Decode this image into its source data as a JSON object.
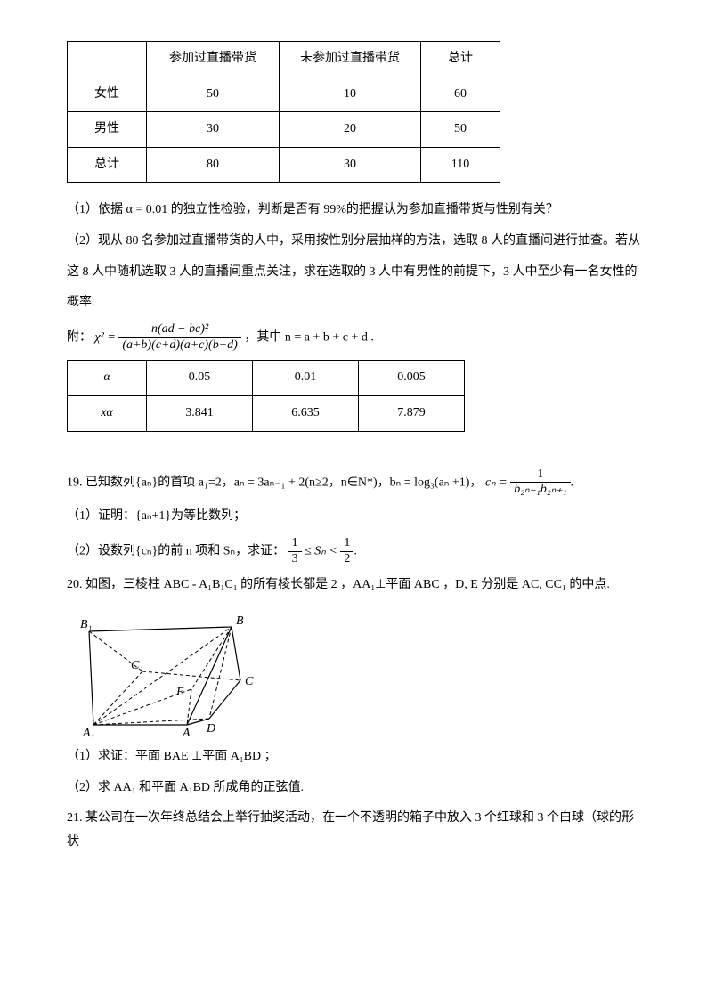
{
  "table1": {
    "headers": [
      "",
      "参加过直播带货",
      "未参加过直播带货",
      "总计"
    ],
    "rows": [
      [
        "女性",
        "50",
        "10",
        "60"
      ],
      [
        "男性",
        "30",
        "20",
        "50"
      ],
      [
        "总计",
        "80",
        "30",
        "110"
      ]
    ],
    "col_widths": [
      "60px",
      "120px",
      "130px",
      "60px"
    ]
  },
  "q_part1": "（1）依据 α = 0.01 的独立性检验，判断是否有 99%的把握认为参加直播带货与性别有关？",
  "q_part2a": "（2）现从 80 名参加过直播带货的人中，采用按性别分层抽样的方法，选取 8 人的直播间进行抽查。若从",
  "q_part2b": "这 8 人中随机选取 3 人的直播间重点关注，求在选取的 3 人中有男性的前提下，3 人中至少有一名女性的",
  "q_part2c": "概率.",
  "appendix": {
    "label": "附：",
    "formula_lhs": "χ² =",
    "formula_num": "n(ad − bc)²",
    "formula_den": "(a+b)(c+d)(a+c)(b+d)",
    "formula_tail": "，其中 n = a + b + c + d ."
  },
  "table2": {
    "rows": [
      [
        "α",
        "0.05",
        "0.01",
        "0.005"
      ],
      [
        "xα",
        "3.841",
        "6.635",
        "7.879"
      ]
    ],
    "col_widths": [
      "60px",
      "90px",
      "90px",
      "90px"
    ]
  },
  "q19": {
    "stem_a": "19. 已知数列{aₙ}的首项 a₁=2，aₙ = 3aₙ₋₁ + 2(n≥2，n∈N*)，bₙ = log₃(aₙ +1)，",
    "cn_lhs": "cₙ =",
    "cn_num": "1",
    "cn_den": "b₂ₙ₋₁b₂ₙ₊₁",
    "stem_tail": ".",
    "p1": "（1）证明：{aₙ+1}为等比数列；",
    "p2_a": "（2）设数列{cₙ}的前 n 项和 Sₙ，求证：",
    "p2_frac1_num": "1",
    "p2_frac1_den": "3",
    "p2_mid": " ≤ Sₙ < ",
    "p2_frac2_num": "1",
    "p2_frac2_den": "2",
    "p2_tail": "."
  },
  "q20": {
    "stem": "20. 如图，三棱柱 ABC - A₁B₁C₁ 的所有棱长都是 2 ，AA₁⊥平面 ABC ，D, E 分别是 AC, CC₁ 的中点.",
    "p1": "（1）求证：平面 BAE ⊥平面 A₁BD ；",
    "p2": "（2）求 AA₁ 和平面 A₁BD 所成角的正弦值.",
    "labels": {
      "B1": "B₁",
      "B": "B",
      "C1": "C₁",
      "C": "C",
      "E": "E",
      "D": "D",
      "A1": "A₁",
      "A": "A"
    }
  },
  "q21": {
    "stem": "21. 某公司在一次年终总结会上举行抽奖活动，在一个不透明的箱子中放入 3 个红球和 3 个白球（球的形状"
  }
}
